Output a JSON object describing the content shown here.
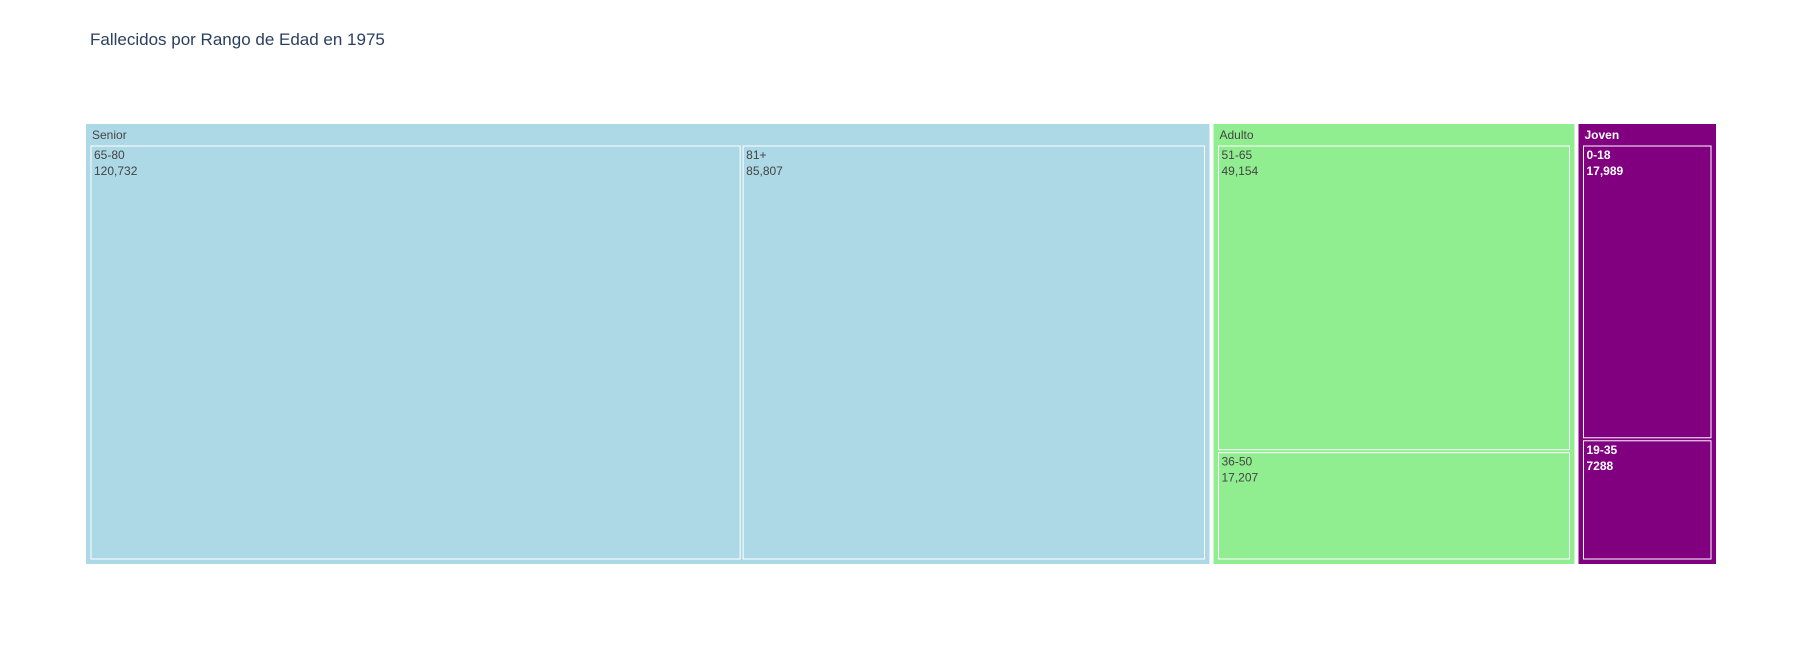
{
  "title": "Fallecidos por Rango de Edad en 1975",
  "chart_data": {
    "type": "treemap",
    "title": "Fallecidos por Rango de Edad en 1975",
    "groups": [
      {
        "name": "Senior",
        "color": "#add8e6",
        "text_color": "#444444",
        "children": [
          {
            "label": "65-80",
            "value": 120732,
            "value_text": "120,732"
          },
          {
            "label": "81+",
            "value": 85807,
            "value_text": "85,807"
          }
        ]
      },
      {
        "name": "Adulto",
        "color": "#90ee90",
        "text_color": "#444444",
        "children": [
          {
            "label": "51-65",
            "value": 49154,
            "value_text": "49,154"
          },
          {
            "label": "36-50",
            "value": 17207,
            "value_text": "17,207"
          }
        ]
      },
      {
        "name": "Joven",
        "color": "#800080",
        "text_color": "#ffffff",
        "children": [
          {
            "label": "0-18",
            "value": 17989,
            "value_text": "17,989"
          },
          {
            "label": "19-35",
            "value": 7288,
            "value_text": "7288"
          }
        ]
      }
    ]
  }
}
